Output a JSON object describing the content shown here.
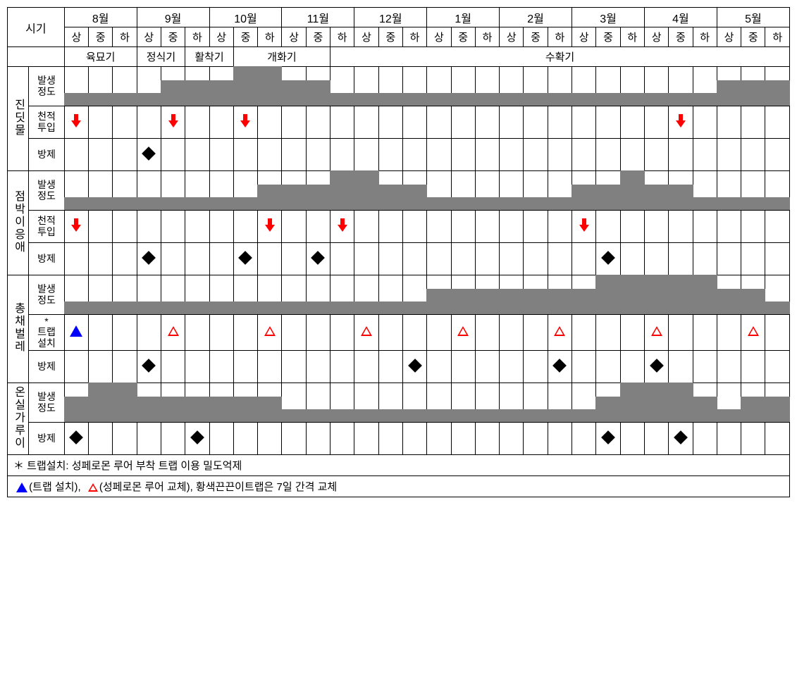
{
  "header": {
    "cornerLabel": "시기",
    "months": [
      "8월",
      "9월",
      "10월",
      "11월",
      "12월",
      "1월",
      "2월",
      "3월",
      "4월",
      "5월"
    ],
    "subPeriods": [
      "상",
      "중",
      "하"
    ],
    "stages": [
      {
        "label": "육묘기",
        "span": 3
      },
      {
        "label": "정식기",
        "span": 2
      },
      {
        "label": "활착기",
        "span": 2
      },
      {
        "label": "개화기",
        "span": 4
      },
      {
        "label": "수확기",
        "span": 19
      }
    ]
  },
  "barMaxHeight": 56,
  "pests": [
    {
      "nameVert": "진딧물",
      "rows": [
        {
          "type": "bar",
          "label": "발생\n정도",
          "levels": [
            1,
            1,
            1,
            1,
            2,
            2,
            2,
            3,
            3,
            2,
            2,
            1,
            1,
            1,
            1,
            1,
            1,
            1,
            1,
            1,
            1,
            1,
            1,
            1,
            1,
            1,
            1,
            2,
            2,
            2
          ]
        },
        {
          "type": "icon",
          "label": "천적\n투입",
          "icons": {
            "0": "redArrow",
            "4": "redArrow",
            "7": "redArrow",
            "25": "redArrow"
          }
        },
        {
          "type": "icon",
          "label": "방제",
          "icons": {
            "3": "diamond"
          }
        }
      ]
    },
    {
      "nameVert": "점박이응애",
      "rows": [
        {
          "type": "bar",
          "label": "발생\n정도",
          "levels": [
            1,
            1,
            1,
            1,
            1,
            1,
            1,
            1,
            2,
            2,
            2,
            3,
            3,
            2,
            2,
            1,
            1,
            1,
            1,
            1,
            1,
            2,
            2,
            3,
            2,
            2,
            1,
            1,
            1,
            1
          ]
        },
        {
          "type": "icon",
          "label": "천적\n투입",
          "icons": {
            "0": "redArrow",
            "8": "redArrow",
            "11": "redArrow",
            "21": "redArrow"
          }
        },
        {
          "type": "icon",
          "label": "방제",
          "icons": {
            "3": "diamond",
            "7": "diamond",
            "10": "diamond",
            "22": "diamond"
          }
        }
      ]
    },
    {
      "nameVert": "총채벌레",
      "rows": [
        {
          "type": "bar",
          "label": "발생\n정도",
          "levels": [
            1,
            1,
            1,
            1,
            1,
            1,
            1,
            1,
            1,
            1,
            1,
            1,
            1,
            1,
            1,
            2,
            2,
            2,
            2,
            2,
            2,
            2,
            3,
            3,
            3,
            3,
            3,
            2,
            2,
            1
          ]
        },
        {
          "type": "icon",
          "label": "*\n트랩\n설치",
          "icons": {
            "0": "blueTri",
            "4": "redTriOutline",
            "8": "redTriOutline",
            "12": "redTriOutline",
            "16": "redTriOutline",
            "20": "redTriOutline",
            "24": "redTriOutline",
            "28": "redTriOutline"
          }
        },
        {
          "type": "icon",
          "label": "방제",
          "icons": {
            "3": "diamond",
            "14": "diamond",
            "20": "diamond",
            "24": "diamond"
          }
        }
      ]
    },
    {
      "nameVert": "온실가루이",
      "rows": [
        {
          "type": "bar",
          "label": "발생\n정도",
          "levels": [
            2,
            3,
            3,
            2,
            2,
            2,
            2,
            2,
            2,
            1,
            1,
            1,
            1,
            1,
            1,
            1,
            1,
            1,
            1,
            1,
            1,
            1,
            2,
            3,
            3,
            3,
            2,
            1,
            2,
            2
          ]
        },
        {
          "type": "icon",
          "label": "방제",
          "icons": {
            "0": "diamond",
            "5": "diamond",
            "22": "diamond",
            "25": "diamond"
          }
        }
      ]
    }
  ],
  "notes": {
    "line1": "＊ 트랩설치: 성페로몬 루어 부착 트랩 이용 밀도억제",
    "line2a": "(트랩 설치), ",
    "line2b": "(성페로몬 루어 교체), 황색끈끈이트랩은 7일 간격 교체"
  },
  "style": {
    "barColor": "#808080",
    "gridColor": "#000000",
    "bgColor": "#ffffff",
    "arrowColor": "#ff0000",
    "diamondColor": "#000000",
    "blueTriColor": "#0000ff",
    "levelHeights": {
      "1": 18,
      "2": 36,
      "3": 56
    },
    "fontSizeHeader": 16,
    "fontSizeCell": 15,
    "fontSizeLabel": 14,
    "tableWidth": 1111
  }
}
